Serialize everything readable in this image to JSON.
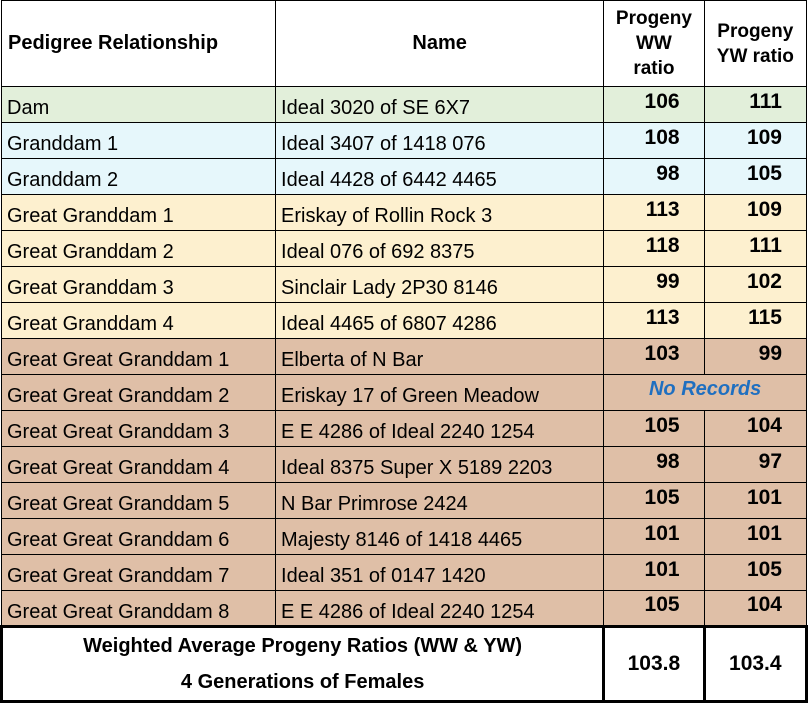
{
  "headers": {
    "relationship": "Pedigree Relationship",
    "name": "Name",
    "ww_line1": "Progeny",
    "ww_line2": "WW",
    "ww_line3": "ratio",
    "yw_line1": "Progeny",
    "yw_line2": "YW ratio"
  },
  "colors": {
    "dam": "#e2efda",
    "granddam": "#e6f7fb",
    "great_granddam": "#fdf0cf",
    "great_great_granddam": "#dfbfa7",
    "no_records_text": "#1f6fc0"
  },
  "rows": [
    {
      "relationship": "Dam",
      "name": "Ideal 3020 of SE 6X7",
      "ww": "106",
      "yw": "111"
    },
    {
      "relationship": "Granddam 1",
      "name": "Ideal 3407 of 1418 076",
      "ww": "108",
      "yw": "109"
    },
    {
      "relationship": "Granddam 2",
      "name": "Ideal 4428 of 6442 4465",
      "ww": "98",
      "yw": "105"
    },
    {
      "relationship": "Great Granddam 1",
      "name": "Eriskay of Rollin Rock 3",
      "ww": "113",
      "yw": "109"
    },
    {
      "relationship": "Great Granddam 2",
      "name": "Ideal 076 of 692 8375",
      "ww": "118",
      "yw": "111"
    },
    {
      "relationship": "Great Granddam 3",
      "name": "Sinclair Lady 2P30 8146",
      "ww": "99",
      "yw": "102"
    },
    {
      "relationship": "Great Granddam 4",
      "name": "Ideal 4465 of 6807 4286",
      "ww": "113",
      "yw": "115"
    },
    {
      "relationship": "Great Great Granddam 1",
      "name": "Elberta of N Bar",
      "ww": "103",
      "yw": "99"
    },
    {
      "relationship": "Great Great Granddam 2",
      "name": "Eriskay 17 of Green Meadow",
      "no_records": "No Records"
    },
    {
      "relationship": "Great Great Granddam 3",
      "name": "E E 4286 of Ideal 2240 1254",
      "ww": "105",
      "yw": "104"
    },
    {
      "relationship": "Great Great Granddam 4",
      "name": "Ideal 8375 Super X 5189 2203",
      "ww": "98",
      "yw": "97"
    },
    {
      "relationship": "Great Great Granddam 5",
      "name": "N Bar Primrose 2424",
      "ww": "105",
      "yw": "101"
    },
    {
      "relationship": "Great Great Granddam 6",
      "name": "Majesty 8146 of 1418 4465",
      "ww": "101",
      "yw": "101"
    },
    {
      "relationship": "Great Great Granddam 7",
      "name": "Ideal 351 of 0147 1420",
      "ww": "101",
      "yw": "105"
    },
    {
      "relationship": "Great Great Granddam 8",
      "name": "E E 4286 of Ideal 2240 1254",
      "ww": "105",
      "yw": "104"
    }
  ],
  "footer": {
    "line1": "Weighted Average Progeny Ratios (WW & YW)",
    "line2": "4 Generations of Females",
    "ww_avg": "103.8",
    "yw_avg": "103.4"
  }
}
